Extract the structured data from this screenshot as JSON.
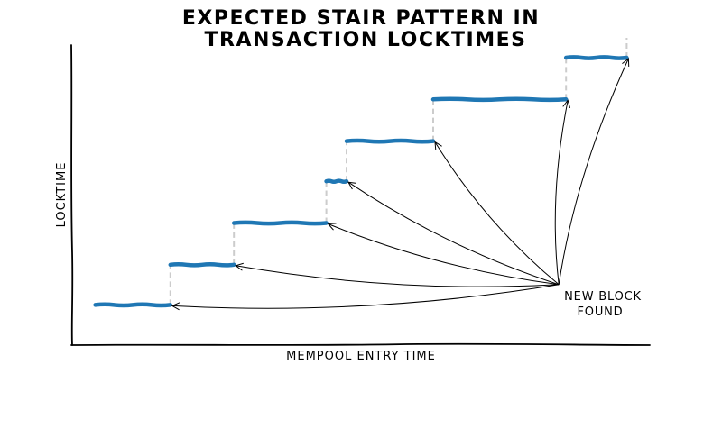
{
  "chart_data": {
    "type": "line",
    "title_lines": [
      "EXPECTED STAIR PATTERN IN",
      "TRANSACTION LOCKTIMES"
    ],
    "xlabel": "MEMPOOL ENTRY TIME",
    "ylabel": "LOCKTIME",
    "grid": false,
    "legend": "none",
    "ticks": "none",
    "xlim": [
      0,
      10
    ],
    "ylim": [
      0,
      10
    ],
    "series_color": "#1f77b4",
    "riser_color": "#cccccc",
    "steps": [
      {
        "x_start": 0.4,
        "x_end": 1.7,
        "y": 1.3
      },
      {
        "x_start": 1.7,
        "x_end": 2.8,
        "y": 2.6
      },
      {
        "x_start": 2.8,
        "x_end": 4.4,
        "y": 3.95
      },
      {
        "x_start": 4.4,
        "x_end": 4.75,
        "y": 5.3
      },
      {
        "x_start": 4.75,
        "x_end": 6.25,
        "y": 6.6
      },
      {
        "x_start": 6.25,
        "x_end": 8.55,
        "y": 7.95
      },
      {
        "x_start": 8.55,
        "x_end": 9.6,
        "y": 9.3
      }
    ],
    "annotation": {
      "lines": [
        "NEW BLOCK",
        "FOUND"
      ],
      "x": 8.55,
      "y": 1.9
    }
  }
}
